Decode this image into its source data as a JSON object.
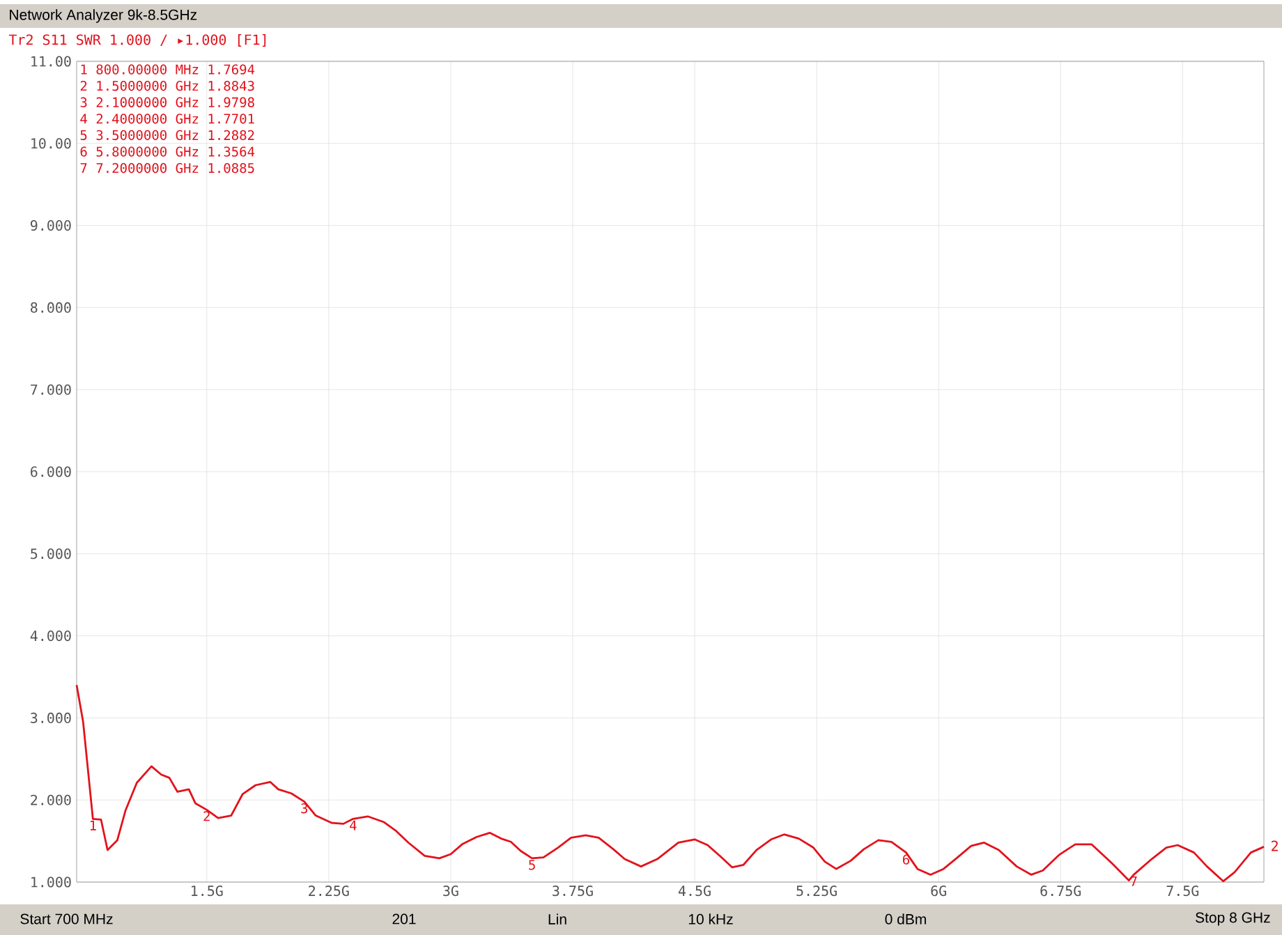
{
  "chart_data": {
    "type": "line",
    "title": "Network Analyzer 9k-8.5GHz",
    "subtitle": "Tr2 S11 SWR 1.000 / ▸1.000 [F1]",
    "x": [
      0.7,
      0.74,
      0.8,
      0.85,
      0.89,
      0.95,
      1.0,
      1.07,
      1.16,
      1.22,
      1.27,
      1.32,
      1.39,
      1.43,
      1.5,
      1.57,
      1.65,
      1.72,
      1.8,
      1.89,
      1.94,
      2.02,
      2.1,
      2.17,
      2.27,
      2.34,
      2.4,
      2.49,
      2.59,
      2.66,
      2.74,
      2.84,
      2.93,
      3.0,
      3.07,
      3.16,
      3.24,
      3.31,
      3.37,
      3.43,
      3.5,
      3.57,
      3.66,
      3.74,
      3.83,
      3.91,
      4.0,
      4.07,
      4.17,
      4.27,
      4.4,
      4.5,
      4.58,
      4.66,
      4.73,
      4.8,
      4.88,
      4.97,
      5.05,
      5.14,
      5.23,
      5.3,
      5.37,
      5.46,
      5.54,
      5.63,
      5.71,
      5.8,
      5.87,
      5.95,
      6.03,
      6.11,
      6.2,
      6.28,
      6.37,
      6.48,
      6.57,
      6.64,
      6.74,
      6.84,
      6.94,
      7.07,
      7.17,
      7.2,
      7.31,
      7.4,
      7.47,
      7.57,
      7.65,
      7.75,
      7.82,
      7.92,
      8.0
    ],
    "values": [
      3.4,
      2.95,
      1.77,
      1.76,
      1.39,
      1.51,
      1.87,
      2.21,
      2.41,
      2.31,
      2.27,
      2.1,
      2.13,
      1.96,
      1.88,
      1.78,
      1.81,
      2.07,
      2.18,
      2.22,
      2.13,
      2.08,
      1.98,
      1.81,
      1.72,
      1.71,
      1.77,
      1.8,
      1.73,
      1.63,
      1.48,
      1.32,
      1.29,
      1.34,
      1.46,
      1.55,
      1.6,
      1.53,
      1.49,
      1.38,
      1.29,
      1.3,
      1.42,
      1.54,
      1.57,
      1.54,
      1.4,
      1.28,
      1.19,
      1.28,
      1.48,
      1.52,
      1.45,
      1.31,
      1.18,
      1.21,
      1.39,
      1.52,
      1.58,
      1.53,
      1.42,
      1.25,
      1.16,
      1.26,
      1.4,
      1.51,
      1.49,
      1.36,
      1.16,
      1.09,
      1.16,
      1.29,
      1.44,
      1.48,
      1.39,
      1.19,
      1.09,
      1.14,
      1.33,
      1.46,
      1.46,
      1.22,
      1.02,
      1.09,
      1.28,
      1.42,
      1.45,
      1.36,
      1.19,
      1.01,
      1.12,
      1.36,
      1.43
    ],
    "color": "#e3121b",
    "grid": true,
    "xlim": [
      0.7,
      8
    ],
    "xticks": [
      {
        "value": 1.5,
        "label": "1.5G"
      },
      {
        "value": 2.25,
        "label": "2.25G"
      },
      {
        "value": 3,
        "label": "3G"
      },
      {
        "value": 3.75,
        "label": "3.75G"
      },
      {
        "value": 4.5,
        "label": "4.5G"
      },
      {
        "value": 5.25,
        "label": "5.25G"
      },
      {
        "value": 6,
        "label": "6G"
      },
      {
        "value": 6.75,
        "label": "6.75G"
      },
      {
        "value": 7.5,
        "label": "7.5G"
      }
    ],
    "ylim": [
      1,
      11
    ],
    "yticks": [
      {
        "value": 1,
        "label": "1.000"
      },
      {
        "value": 2,
        "label": "2.000"
      },
      {
        "value": 3,
        "label": "3.000"
      },
      {
        "value": 4,
        "label": "4.000"
      },
      {
        "value": 5,
        "label": "5.000"
      },
      {
        "value": 6,
        "label": "6.000"
      },
      {
        "value": 7,
        "label": "7.000"
      },
      {
        "value": 8,
        "label": "8.000"
      },
      {
        "value": 9,
        "label": "9.000"
      },
      {
        "value": 10,
        "label": "10.00"
      },
      {
        "value": 11,
        "label": "11.00"
      }
    ],
    "annotations": [
      "1 800.00000 MHz  1.7694",
      "2 1.5000000 GHz  1.8843",
      "3 2.1000000 GHz  1.9798",
      "4 2.4000000 GHz  1.7701",
      "5 3.5000000 GHz  1.2882",
      "6 5.8000000 GHz  1.3564",
      "7 7.2000000 GHz  1.0885",
      {
        "text": "1",
        "x": 0.8,
        "y": 1.7694
      },
      {
        "text": "2",
        "x": 1.5,
        "y": 1.8843
      },
      {
        "text": "3",
        "x": 2.1,
        "y": 1.9798
      },
      {
        "text": "4",
        "x": 2.4,
        "y": 1.7701
      },
      {
        "text": "5",
        "x": 3.5,
        "y": 1.2882
      },
      {
        "text": "6",
        "x": 5.8,
        "y": 1.3564
      },
      {
        "text": "7",
        "x": 7.2,
        "y": 1.0885
      },
      "Start 700 MHz",
      "201",
      "Lin",
      "10 kHz",
      "0 dBm",
      "Stop 8 GHz",
      "2"
    ]
  }
}
